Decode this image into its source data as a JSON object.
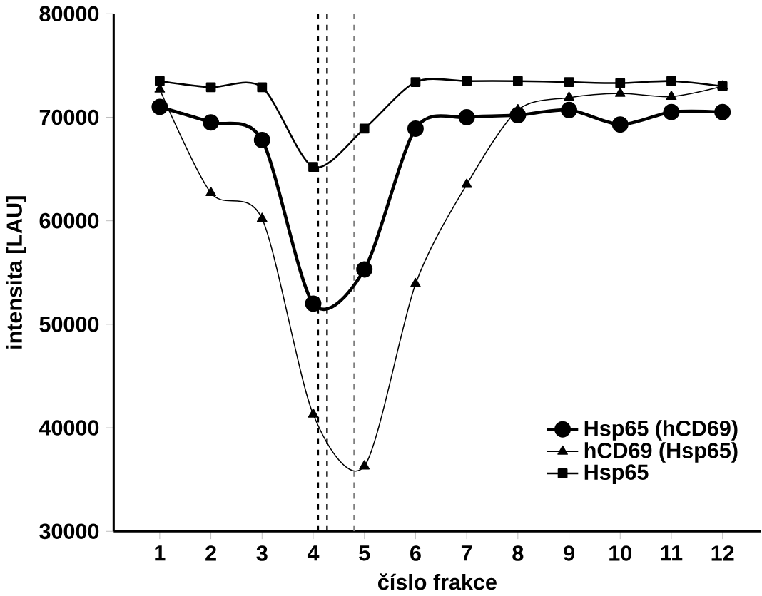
{
  "chart_data": {
    "type": "line",
    "xlabel": "číslo frakce",
    "ylabel": "intensita [LAU]",
    "x": [
      1,
      2,
      3,
      4,
      5,
      6,
      7,
      8,
      9,
      10,
      11,
      12
    ],
    "xlim": [
      0.1,
      12.75
    ],
    "xticks": [
      1,
      2,
      3,
      4,
      5,
      6,
      7,
      8,
      9,
      10,
      11,
      12
    ],
    "ylim": [
      30000,
      80000
    ],
    "yticks": [
      30000,
      40000,
      50000,
      60000,
      70000,
      80000
    ],
    "series": [
      {
        "name": "Hsp65 (hCD69)",
        "color": "#000000",
        "marker": "circle",
        "values": [
          71000,
          69500,
          67800,
          52000,
          55300,
          68900,
          70000,
          70200,
          70700,
          69300,
          70500,
          70500
        ]
      },
      {
        "name": "hCD69 (Hsp65)",
        "color": "#000000",
        "marker": "triangle",
        "values": [
          72700,
          62700,
          60200,
          41300,
          36300,
          53900,
          63500,
          70700,
          71900,
          72300,
          72000,
          73000
        ]
      },
      {
        "name": "Hsp65",
        "color": "#000000",
        "marker": "square",
        "values": [
          73500,
          72900,
          72900,
          65200,
          68900,
          73400,
          73500,
          73500,
          73400,
          73300,
          73500,
          73000
        ]
      }
    ],
    "ref_lines": [
      {
        "axis": "x",
        "value": 4.1,
        "label": null,
        "color": "#000000",
        "line_style": "dashed"
      },
      {
        "axis": "x",
        "value": 4.27,
        "label": null,
        "color": "#000000",
        "line_style": "dashed"
      },
      {
        "axis": "x",
        "value": 4.8,
        "label": null,
        "color": "#808080",
        "line_style": "dashed"
      }
    ],
    "legend": "bottom right",
    "grid": false,
    "line_style": "solid"
  }
}
